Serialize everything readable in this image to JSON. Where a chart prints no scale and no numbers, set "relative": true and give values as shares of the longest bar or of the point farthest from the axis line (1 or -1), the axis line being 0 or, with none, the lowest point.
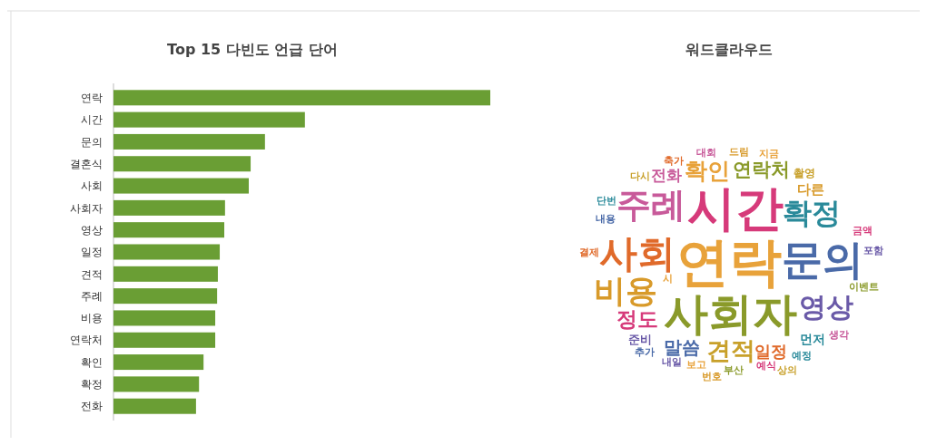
{
  "chart_data": [
    {
      "type": "bar",
      "title": "Top 15 다빈도 언급 단어",
      "orientation": "horizontal",
      "relative": true,
      "color": "#6a9e34",
      "categories": [
        "연락",
        "시간",
        "문의",
        "결혼식",
        "사회",
        "사회자",
        "영상",
        "일정",
        "견적",
        "주례",
        "비용",
        "연락처",
        "확인",
        "확정",
        "전화"
      ],
      "values": [
        1,
        0.508,
        0.402,
        0.364,
        0.359,
        0.296,
        0.294,
        0.282,
        0.277,
        0.275,
        0.27,
        0.27,
        0.239,
        0.227,
        0.219
      ]
    },
    {
      "type": "other",
      "title": "워드클라우드",
      "annotations": [
        "연락",
        "시간",
        "사회자",
        "문의",
        "사회",
        "주례",
        "비용",
        "확정",
        "영상",
        "견적",
        "확인",
        "정도",
        "연락처",
        "말씀",
        "일정",
        "전화",
        "다른",
        "먼저",
        "준비",
        "촬영",
        "보고",
        "예식",
        "부산",
        "내용",
        "축가",
        "대회",
        "드림",
        "예정",
        "내일",
        "다시",
        "지금",
        "금액",
        "이벤트",
        "추가",
        "결제",
        "생각",
        "번호",
        "단번",
        "포함",
        "상의",
        "시"
      ]
    }
  ]
}
